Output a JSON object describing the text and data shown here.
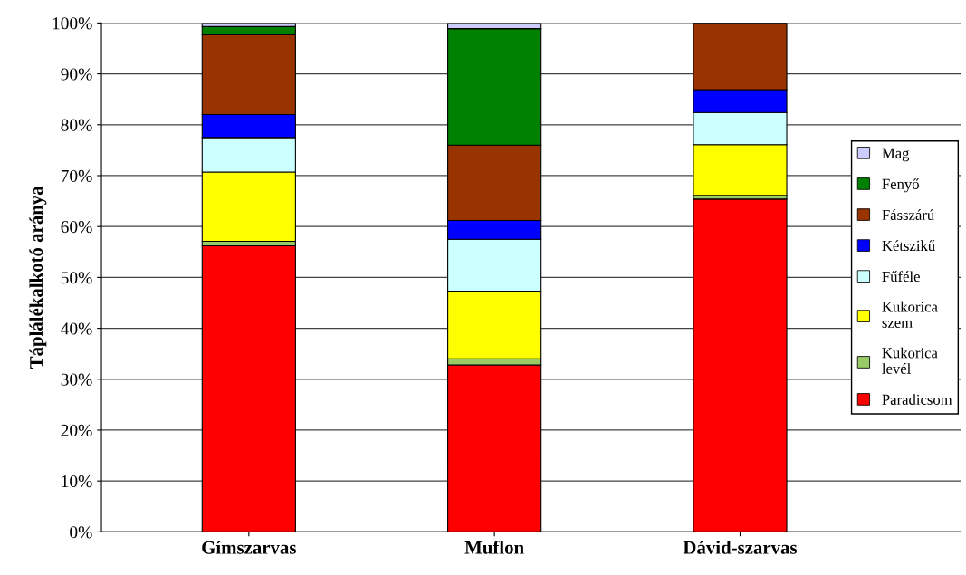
{
  "chart_data": {
    "type": "bar",
    "stacked": true,
    "ylabel": "Táplálékalkotó aránya",
    "categories": [
      "Gímszarvas",
      "Muflon",
      "Dávid-szarvas"
    ],
    "series": [
      {
        "name": "Paradicsom",
        "color": "#ff0000",
        "values": [
          56.2,
          32.8,
          65.4
        ]
      },
      {
        "name": "Kukorica\nlevél",
        "color": "#99cc66",
        "values": [
          0.9,
          1.2,
          0.7
        ]
      },
      {
        "name": "Kukorica\nszem",
        "color": "#ffff00",
        "values": [
          13.6,
          13.3,
          10.0
        ]
      },
      {
        "name": "Fűféle",
        "color": "#ccffff",
        "values": [
          6.8,
          10.2,
          6.3
        ]
      },
      {
        "name": "Kétszikű",
        "color": "#0000ff",
        "values": [
          4.5,
          3.7,
          4.5
        ]
      },
      {
        "name": "Fásszárú",
        "color": "#993300",
        "values": [
          15.7,
          14.8,
          13.0
        ]
      },
      {
        "name": "Fenyő",
        "color": "#008000",
        "values": [
          1.6,
          22.9,
          0.1
        ]
      },
      {
        "name": "Mag",
        "color": "#ccccff",
        "values": [
          0.7,
          1.1,
          0.0
        ]
      }
    ],
    "ylim": [
      0,
      100
    ],
    "yticks": [
      {
        "value": 0,
        "label": "0%"
      },
      {
        "value": 10,
        "label": "10%"
      },
      {
        "value": 20,
        "label": "20%"
      },
      {
        "value": 30,
        "label": "30%"
      },
      {
        "value": 40,
        "label": "40%"
      },
      {
        "value": 50,
        "label": "50%"
      },
      {
        "value": 60,
        "label": "60%"
      },
      {
        "value": 70,
        "label": "70%"
      },
      {
        "value": 80,
        "label": "80%"
      },
      {
        "value": 90,
        "label": "90%"
      },
      {
        "value": 100,
        "label": "100%"
      }
    ],
    "grid": "y",
    "legend": "right"
  }
}
